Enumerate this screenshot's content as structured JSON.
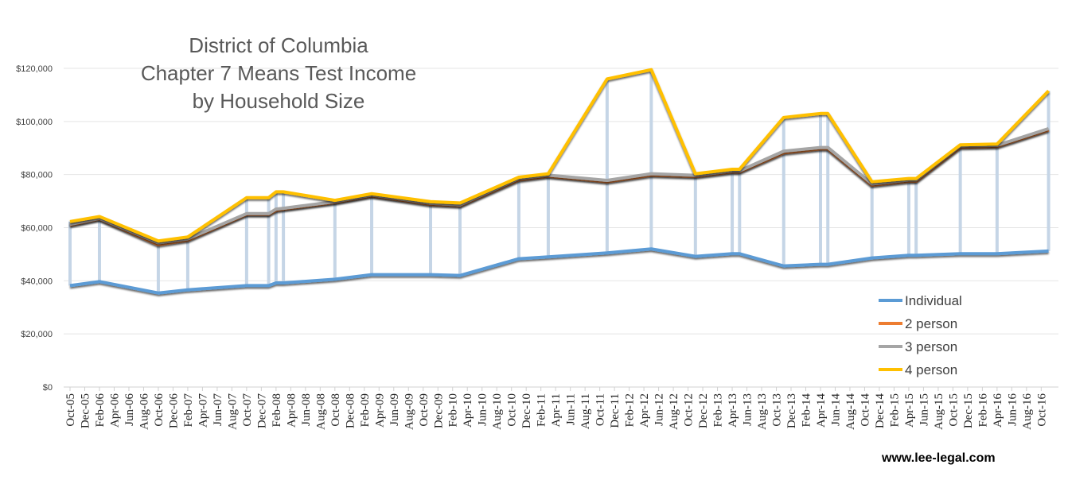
{
  "chart_data": {
    "type": "line",
    "title": [
      "District of Columbia",
      "Chapter 7 Means Test Income",
      "by Household Size"
    ],
    "ylim": [
      0,
      120000
    ],
    "yticks": [
      "$0",
      "$20,000",
      "$40,000",
      "$60,000",
      "$80,000",
      "$100,000",
      "$120,000"
    ],
    "ytick_values": [
      0,
      20000,
      40000,
      60000,
      80000,
      100000,
      120000
    ],
    "xticks": [
      "Oct-05",
      "Dec-05",
      "Feb-06",
      "Apr-06",
      "Jun-06",
      "Aug-06",
      "Oct-06",
      "Dec-06",
      "Feb-07",
      "Apr-07",
      "Jun-07",
      "Aug-07",
      "Oct-07",
      "Dec-07",
      "Feb-08",
      "Apr-08",
      "Jun-08",
      "Aug-08",
      "Oct-08",
      "Dec-08",
      "Feb-09",
      "Apr-09",
      "Jun-09",
      "Aug-09",
      "Oct-09",
      "Dec-09",
      "Feb-10",
      "Apr-10",
      "Jun-10",
      "Aug-10",
      "Oct-10",
      "Dec-10",
      "Feb-11",
      "Apr-11",
      "Jun-11",
      "Aug-11",
      "Oct-11",
      "Dec-11",
      "Feb-12",
      "Apr-12",
      "Jun-12",
      "Aug-12",
      "Oct-12",
      "Dec-12",
      "Feb-13",
      "Apr-13",
      "Jun-13",
      "Aug-13",
      "Oct-13",
      "Dec-13",
      "Feb-14",
      "Apr-14",
      "Jun-14",
      "Aug-14",
      "Oct-14",
      "Dec-14",
      "Feb-15",
      "Apr-15",
      "Jun-15",
      "Aug-15",
      "Oct-15",
      "Dec-15",
      "Feb-16",
      "Apr-16",
      "Jun-16",
      "Aug-16",
      "Oct-16"
    ],
    "x": [
      "Oct-05",
      "Feb-06",
      "Oct-06",
      "Feb-07",
      "Oct-07",
      "Jan-08",
      "Feb-08",
      "Mar-08",
      "Oct-08",
      "Mar-09",
      "Nov-09",
      "Mar-10",
      "Nov-10",
      "Mar-11",
      "Nov-11",
      "May-12",
      "Nov-12",
      "Apr-13",
      "May-13",
      "Nov-13",
      "Apr-14",
      "May-14",
      "Nov-14",
      "Apr-15",
      "May-15",
      "Nov-15",
      "Apr-16",
      "Nov-16"
    ],
    "series": [
      {
        "name": "Individual",
        "color": "#5b9bd5",
        "values": [
          38200,
          39700,
          35400,
          36600,
          38200,
          38200,
          39200,
          39200,
          40600,
          42300,
          42300,
          42000,
          48300,
          49000,
          50500,
          52000,
          49200,
          50200,
          50200,
          45600,
          46200,
          46200,
          48600,
          49600,
          49600,
          50200,
          50200,
          51200
        ]
      },
      {
        "name": "2 person",
        "color": "#ed7d31",
        "values": [
          61000,
          63300,
          53600,
          55300,
          65000,
          65000,
          66500,
          67000,
          69500,
          72000,
          68800,
          68300,
          78000,
          79400,
          77300,
          79800,
          79300,
          81000,
          81000,
          88200,
          89700,
          89700,
          76000,
          77500,
          77500,
          90300,
          90600,
          96800
        ]
      },
      {
        "name": "3 person",
        "color": "#a5a5a5",
        "values": [
          61300,
          63500,
          54300,
          55800,
          65300,
          65300,
          67000,
          67300,
          69800,
          72300,
          69200,
          68600,
          78500,
          79800,
          77800,
          80300,
          79700,
          81400,
          81400,
          88800,
          90200,
          90200,
          76500,
          78000,
          78000,
          90800,
          91000,
          97300
        ]
      },
      {
        "name": "4 person",
        "color": "#ffc000",
        "values": [
          62300,
          64200,
          55000,
          56500,
          71300,
          71300,
          73500,
          73500,
          70300,
          72800,
          69800,
          69300,
          79000,
          80300,
          116000,
          119500,
          80300,
          82000,
          82000,
          101500,
          103000,
          103000,
          77300,
          78500,
          78500,
          91200,
          91500,
          111500
        ]
      }
    ],
    "drop_lines": true,
    "drop_line_color": "#c5d5e6",
    "grid": true,
    "legend_position": "bottom-right"
  },
  "credit": "www.lee-legal.com"
}
